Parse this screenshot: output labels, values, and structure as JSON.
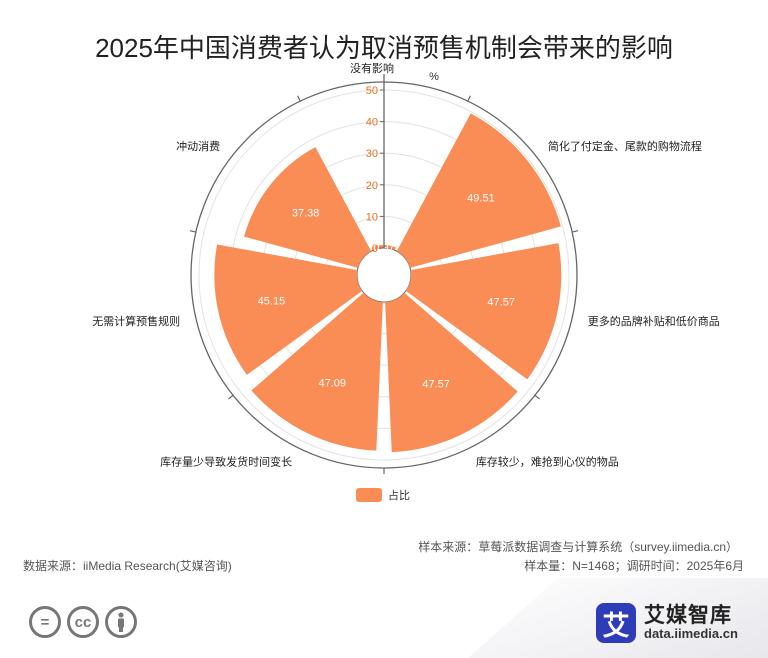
{
  "title": "2025年中国消费者认为取消预售机制会带来的影响",
  "chart_data": {
    "type": "polar-bar",
    "unit": "%",
    "rmax": 50,
    "ticks": [
      0,
      10,
      20,
      30,
      40,
      50
    ],
    "categories": [
      "没有影响",
      "简化了付定金、尾款的购物流程",
      "更多的品牌补贴和低价商品",
      "库存较少，难抢到心仪的物品",
      "库存量少导致发货时间变长",
      "无需计算预售规则",
      "冲动消费"
    ],
    "series": [
      {
        "name": "占比",
        "values": [
          0.97,
          49.51,
          47.57,
          47.57,
          47.09,
          45.15,
          37.38
        ]
      }
    ],
    "legend_position": "bottom"
  },
  "colors": {
    "bar": "#FA8C55",
    "axis": "#666666",
    "grid": "#e3e3e3",
    "tick": "#E8701F"
  },
  "footer": {
    "sample_source": "样本来源：草莓派数据调查与计算系统（survey.iimedia.cn）",
    "data_source": "数据来源：iiMedia Research(艾媒咨询)",
    "sample_info": "样本量：N=1468；调研时间：2025年6月"
  },
  "license_icons": [
    "equal-icon",
    "cc-icon",
    "person-icon"
  ],
  "brand": {
    "mark": "艾",
    "name": "艾媒智库",
    "url": "data.iimedia.cn"
  }
}
